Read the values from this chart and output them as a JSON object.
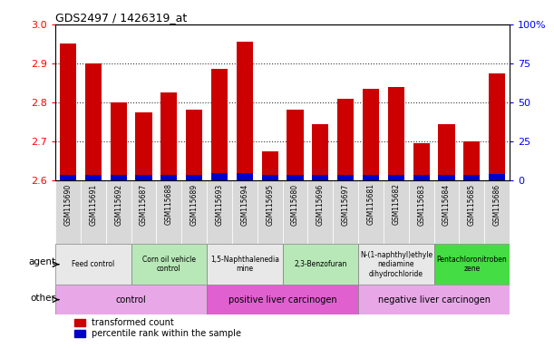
{
  "title": "GDS2497 / 1426319_at",
  "samples": [
    "GSM115690",
    "GSM115691",
    "GSM115692",
    "GSM115687",
    "GSM115688",
    "GSM115689",
    "GSM115693",
    "GSM115694",
    "GSM115695",
    "GSM115680",
    "GSM115696",
    "GSM115697",
    "GSM115681",
    "GSM115682",
    "GSM115683",
    "GSM115684",
    "GSM115685",
    "GSM115686"
  ],
  "transformed_count": [
    2.95,
    2.9,
    2.8,
    2.775,
    2.825,
    2.78,
    2.885,
    2.955,
    2.675,
    2.78,
    2.745,
    2.81,
    2.835,
    2.84,
    2.695,
    2.745,
    2.7,
    2.875
  ],
  "percentile_rank": [
    3.5,
    3.5,
    3.5,
    3.5,
    3.5,
    3.5,
    4.5,
    4.5,
    3.5,
    3.5,
    3.5,
    3.5,
    3.5,
    3.5,
    3.5,
    3.5,
    3.5,
    4.0
  ],
  "ymin": 2.6,
  "ymax": 3.0,
  "y_ticks": [
    2.6,
    2.7,
    2.8,
    2.9,
    3.0
  ],
  "right_yticks": [
    0,
    25,
    50,
    75,
    100
  ],
  "right_yticklabels": [
    "0",
    "25",
    "50",
    "75",
    "100%"
  ],
  "bar_color_red": "#cc0000",
  "bar_color_blue": "#0000cc",
  "agent_groups": [
    {
      "label": "Feed control",
      "start": 0,
      "end": 3,
      "color": "#e8e8e8"
    },
    {
      "label": "Corn oil vehicle\ncontrol",
      "start": 3,
      "end": 6,
      "color": "#b8e8b8"
    },
    {
      "label": "1,5-Naphthalenedia\nmine",
      "start": 6,
      "end": 9,
      "color": "#e8e8e8"
    },
    {
      "label": "2,3-Benzofuran",
      "start": 9,
      "end": 12,
      "color": "#b8e8b8"
    },
    {
      "label": "N-(1-naphthyl)ethyle\nnediamine\ndihydrochloride",
      "start": 12,
      "end": 15,
      "color": "#e8e8e8"
    },
    {
      "label": "Pentachloronitroben\nzene",
      "start": 15,
      "end": 18,
      "color": "#44dd44"
    }
  ],
  "other_groups": [
    {
      "label": "control",
      "start": 0,
      "end": 6,
      "color": "#e8a8e8"
    },
    {
      "label": "positive liver carcinogen",
      "start": 6,
      "end": 12,
      "color": "#e060d0"
    },
    {
      "label": "negative liver carcinogen",
      "start": 12,
      "end": 18,
      "color": "#e8a8e8"
    }
  ],
  "legend_red": "transformed count",
  "legend_blue": "percentile rank within the sample",
  "agent_label": "agent",
  "other_label": "other",
  "sample_bg_color": "#d8d8d8"
}
